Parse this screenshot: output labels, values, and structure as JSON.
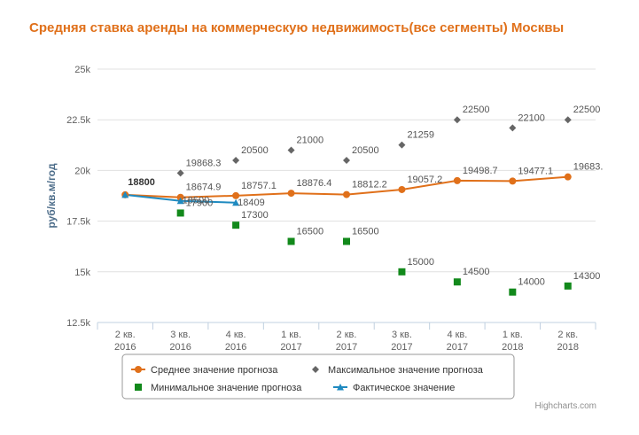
{
  "chart_data": {
    "type": "line",
    "title": "Средняя ставка аренды на коммерческую недвижимость(все сегменты) Москвы",
    "ylabel": "руб/кв.м/год",
    "xlabel": "",
    "ylim": [
      12500,
      25000
    ],
    "yticks": [
      12500,
      15000,
      17500,
      20000,
      22500,
      25000
    ],
    "ytick_labels": [
      "12.5k",
      "15k",
      "17.5k",
      "20k",
      "22.5k",
      "25k"
    ],
    "categories": [
      [
        "2 кв.",
        "2016"
      ],
      [
        "3 кв.",
        "2016"
      ],
      [
        "4 кв.",
        "2016"
      ],
      [
        "1 кв.",
        "2017"
      ],
      [
        "2 кв.",
        "2017"
      ],
      [
        "3 кв.",
        "2017"
      ],
      [
        "4 кв.",
        "2017"
      ],
      [
        "1 кв.",
        "2018"
      ],
      [
        "2 кв.",
        "2018"
      ]
    ],
    "legend_position": "bottom-center",
    "grid": "horizontal",
    "series": [
      {
        "name": "Среднее значение прогноза",
        "kind": "line",
        "marker": "circle",
        "color": "#e0701a",
        "values": [
          18800,
          18674.9,
          18757.1,
          18876.4,
          18812.2,
          19057.2,
          19498.7,
          19477.1,
          19683
        ],
        "labels": [
          "18800",
          "18674.9",
          "18757.1",
          "18876.4",
          "18812.2",
          "19057.2",
          "19498.7",
          "19477.1",
          "19683."
        ]
      },
      {
        "name": "Максимальное значение прогноза",
        "kind": "scatter",
        "marker": "diamond",
        "color": "#666666",
        "values": [
          null,
          19868.3,
          20500,
          21000,
          20500,
          21259,
          22500,
          22100,
          22500
        ],
        "labels": [
          "",
          "19868.3",
          "20500",
          "21000",
          "20500",
          "21259",
          "22500",
          "22100",
          "22500"
        ]
      },
      {
        "name": "Минимальное значение прогноза",
        "kind": "scatter",
        "marker": "square",
        "color": "#12891b",
        "values": [
          null,
          17900,
          17300,
          16500,
          16500,
          15000,
          14500,
          14000,
          14300
        ],
        "labels": [
          "",
          "17900",
          "17300",
          "16500",
          "16500",
          "15000",
          "14500",
          "14000",
          "14300"
        ]
      },
      {
        "name": "Фактическое значение",
        "kind": "line",
        "marker": "triangle",
        "color": "#1f8ac0",
        "values": [
          18800,
          18500,
          18409,
          null,
          null,
          null,
          null,
          null,
          null
        ],
        "labels": [
          "18800",
          "18500",
          "18409",
          "",
          "",
          "",
          "",
          "",
          ""
        ]
      }
    ]
  },
  "credits": "Highcharts.com"
}
